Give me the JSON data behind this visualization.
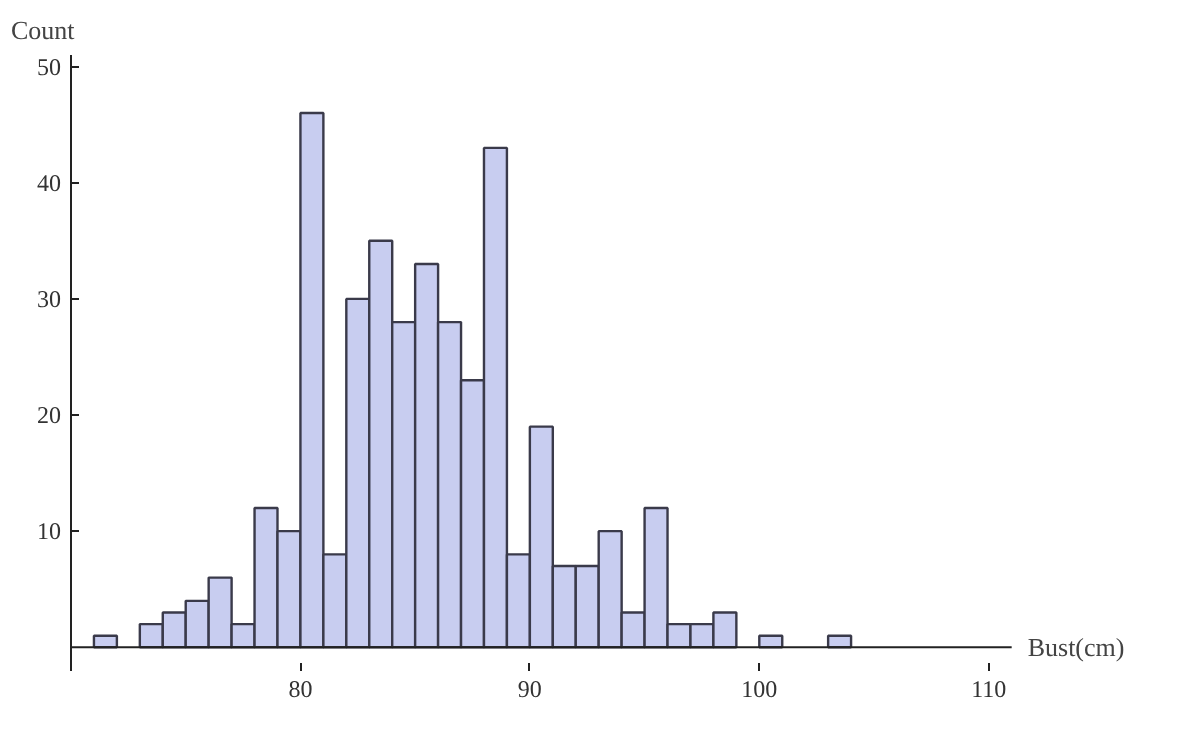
{
  "chart_data": {
    "type": "histogram",
    "xlabel": "Bust(cm)",
    "ylabel": "Count",
    "bins": [
      71,
      72,
      73,
      74,
      75,
      76,
      77,
      78,
      79,
      80,
      81,
      82,
      83,
      84,
      85,
      86,
      87,
      88,
      89,
      90,
      91,
      92,
      93,
      94,
      95,
      96,
      97,
      98,
      99,
      100,
      101,
      102,
      103,
      104
    ],
    "values": [
      1,
      0,
      2,
      3,
      4,
      6,
      2,
      12,
      10,
      46,
      8,
      30,
      35,
      28,
      33,
      28,
      23,
      43,
      8,
      19,
      7,
      7,
      10,
      3,
      12,
      2,
      2,
      3,
      0,
      1,
      0,
      0,
      1
    ],
    "color": "#c8cdf0",
    "xlim": [
      70,
      111
    ],
    "ylim": [
      0,
      51
    ],
    "xticks": [
      80,
      90,
      100,
      110
    ],
    "yticks": [
      10,
      20,
      30,
      40,
      50
    ],
    "grid": false
  }
}
